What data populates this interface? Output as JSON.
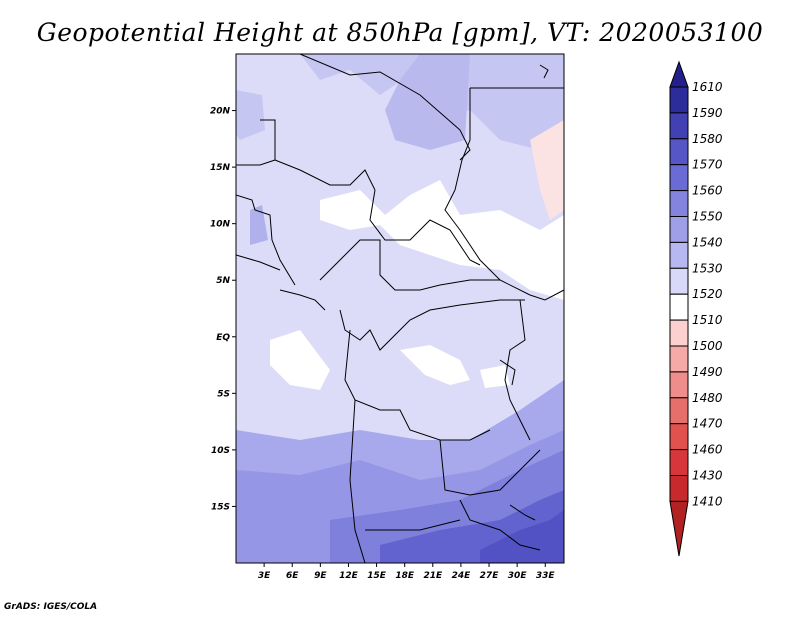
{
  "title": "Geopotential Height at 850hPa [gpm], VT: 2020053100",
  "credit": "GrADS: IGES/COLA",
  "chart_data": {
    "type": "heatmap",
    "title": "Geopotential Height at 850hPa [gpm], VT: 2020053100",
    "xlim": [
      0,
      35
    ],
    "ylim": [
      -20,
      25
    ],
    "x_ticks": [
      3,
      6,
      9,
      12,
      15,
      18,
      21,
      24,
      27,
      30,
      33
    ],
    "x_tick_labels": [
      "3E",
      "6E",
      "9E",
      "12E",
      "15E",
      "18E",
      "21E",
      "24E",
      "27E",
      "30E",
      "33E"
    ],
    "y_ticks": [
      20,
      15,
      10,
      5,
      0,
      -5,
      -10,
      -15
    ],
    "y_tick_labels": [
      "20N",
      "15N",
      "10N",
      "5N",
      "EQ",
      "5S",
      "10S",
      "15S"
    ],
    "colorbar": {
      "levels": [
        1410,
        1430,
        1460,
        1470,
        1480,
        1490,
        1500,
        1510,
        1520,
        1530,
        1540,
        1550,
        1560,
        1570,
        1580,
        1590,
        1610
      ],
      "colors": [
        "#b22222",
        "#c8292c",
        "#d7373a",
        "#e1524f",
        "#e76f6b",
        "#ee8d89",
        "#f5aaa8",
        "#fbd0cf",
        "#ffffff",
        "#d8d8f8",
        "#b8b8f0",
        "#9f9fe8",
        "#8484df",
        "#6b6bd5",
        "#5656c7",
        "#4141b4",
        "#2c2c9a",
        "#241f8a"
      ]
    },
    "regions": [
      {
        "name": "north-light",
        "value": 1525,
        "color": "#dcdcf8"
      },
      {
        "name": "north-band",
        "value": 1532,
        "color": "#c6c6f2"
      },
      {
        "name": "central-white",
        "value": 1518,
        "color": "#ffffff"
      },
      {
        "name": "southern-gradient",
        "value": 1545,
        "color": "#a8a8ec"
      },
      {
        "name": "southeast-deep",
        "value": 1580,
        "color": "#5252c4"
      },
      {
        "name": "northeast-pink",
        "value": 1508,
        "color": "#fce3e3"
      }
    ]
  }
}
